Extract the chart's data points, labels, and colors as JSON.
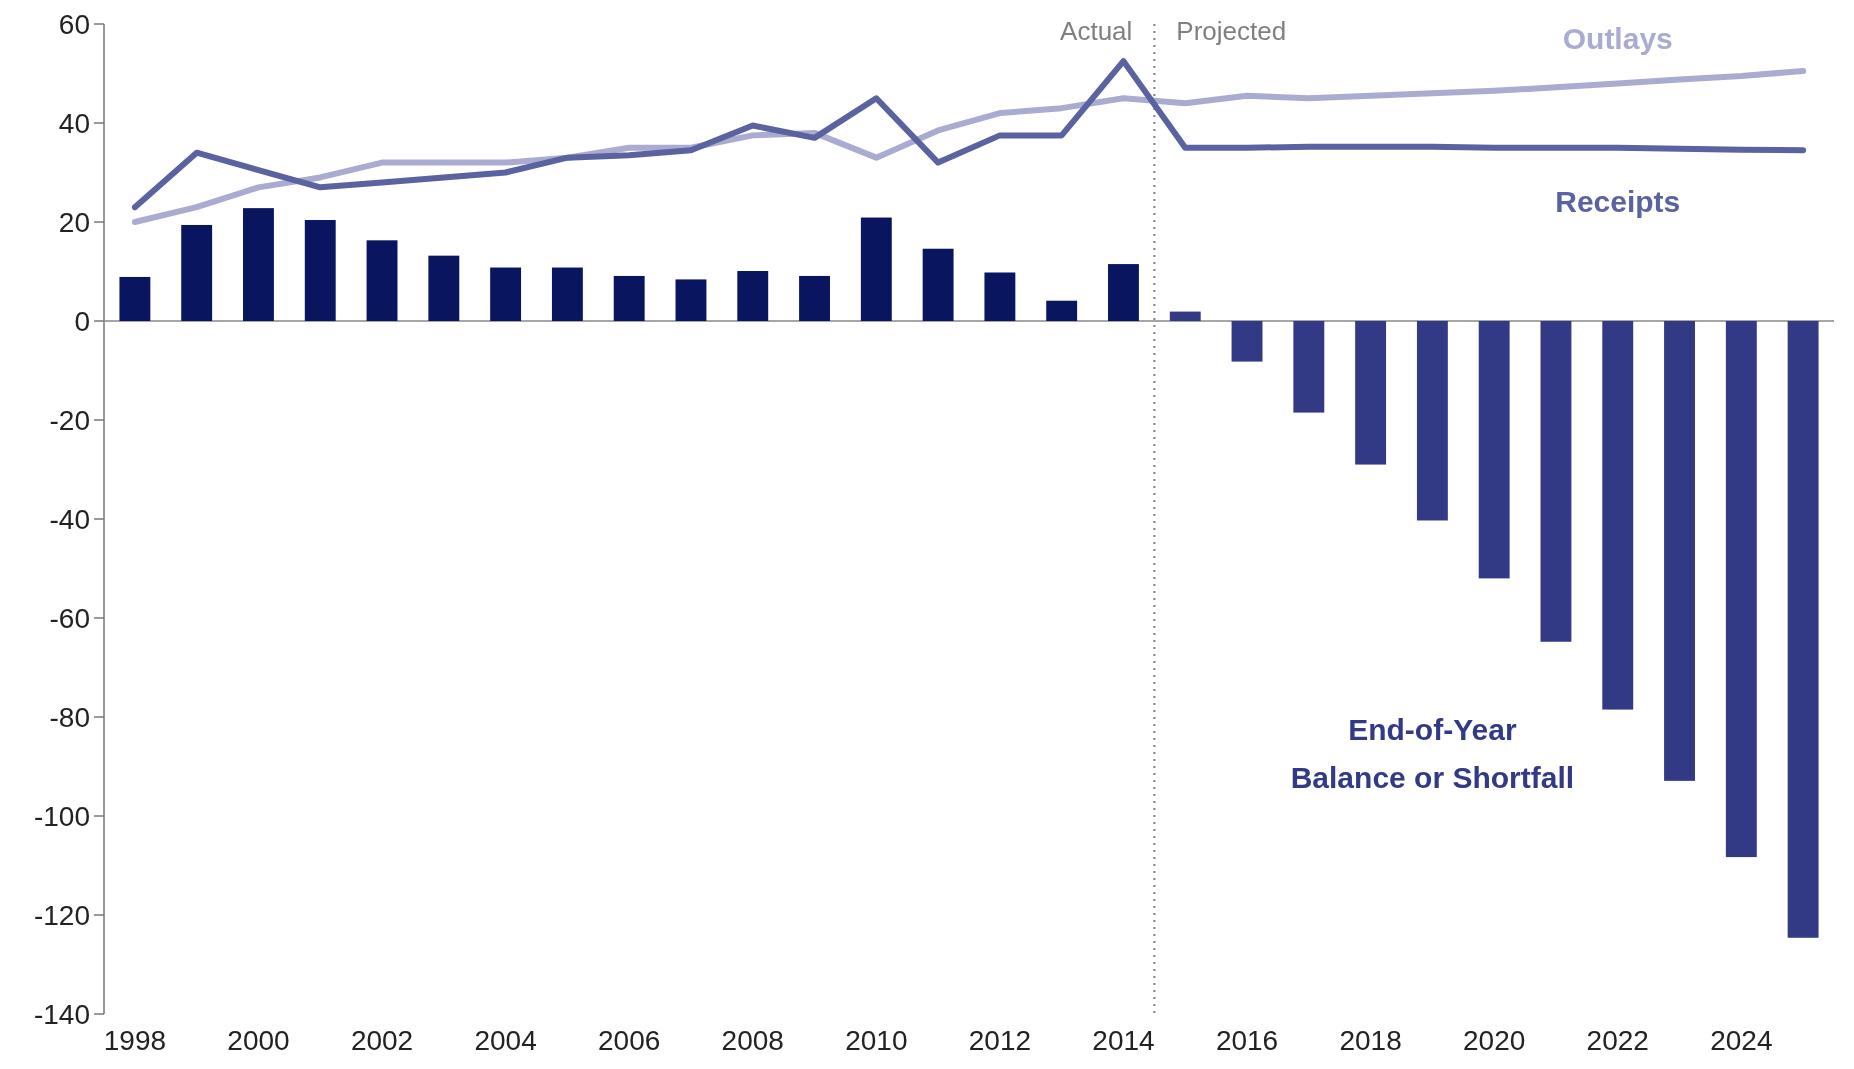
{
  "chart_data": {
    "type": "bar",
    "x": [
      1998,
      1999,
      2000,
      2001,
      2002,
      2003,
      2004,
      2005,
      2006,
      2007,
      2008,
      2009,
      2010,
      2011,
      2012,
      2013,
      2014,
      2015,
      2016,
      2017,
      2018,
      2019,
      2020,
      2021,
      2022,
      2023,
      2024,
      2025
    ],
    "series": [
      {
        "name": "End-of-Year Balance or Shortfall",
        "color": "#323a86",
        "colors": [
          "#0a1560",
          "#0a1560",
          "#0a1560",
          "#0a1560",
          "#0a1560",
          "#0a1560",
          "#0a1560",
          "#0a1560",
          "#0a1560",
          "#0a1560",
          "#0a1560",
          "#0a1560",
          "#0a1560",
          "#0a1560",
          "#0a1560",
          "#0a1560",
          "#0a1560",
          "#323a86",
          "#323a86",
          "#323a86",
          "#323a86",
          "#323a86",
          "#323a86",
          "#323a86",
          "#323a86",
          "#323a86",
          "#323a86",
          "#323a86"
        ],
        "values": [
          8.9,
          19.4,
          22.8,
          20.4,
          16.3,
          13.2,
          10.8,
          10.8,
          9.1,
          8.4,
          10.1,
          9.1,
          20.9,
          14.6,
          9.8,
          4.1,
          11.5,
          1.9,
          -8.2,
          -18.5,
          -29,
          -40.3,
          -52,
          -64.8,
          -78.5,
          -92.9,
          -108.3,
          -124.6
        ]
      },
      {
        "name": "Outlays",
        "type": "line",
        "color": "#a9acd0",
        "values": [
          20,
          23,
          27,
          29,
          32,
          32,
          32,
          33,
          35,
          35,
          37.5,
          38,
          33,
          38.5,
          42,
          43,
          45,
          44,
          45.5,
          45,
          45.5,
          46,
          46.5,
          47.2,
          48,
          48.8,
          49.5,
          50.5
        ]
      },
      {
        "name": "Receipts",
        "type": "line",
        "color": "#5a62a0",
        "values": [
          23,
          34,
          30.5,
          27,
          28,
          29,
          30,
          33,
          33.5,
          34.5,
          39.5,
          37,
          45,
          32,
          37.5,
          37.5,
          52.5,
          35,
          35,
          35.2,
          35.2,
          35.2,
          35,
          35,
          35,
          34.8,
          34.6,
          34.5
        ]
      }
    ],
    "xlim": [
      1997.5,
      2025.5
    ],
    "xticks": [
      1998,
      2000,
      2002,
      2004,
      2006,
      2008,
      2010,
      2012,
      2014,
      2016,
      2018,
      2020,
      2022,
      2024
    ],
    "ylim": [
      -140,
      60
    ],
    "yticks": [
      -140,
      -120,
      -100,
      -80,
      -60,
      -40,
      -20,
      0,
      20,
      40,
      60
    ],
    "ref_lines": [
      {
        "axis": "x",
        "value": 2014.5,
        "color": "#808080",
        "line_style": "dotted"
      }
    ],
    "annotations": [
      "Actual",
      "Projected"
    ]
  }
}
